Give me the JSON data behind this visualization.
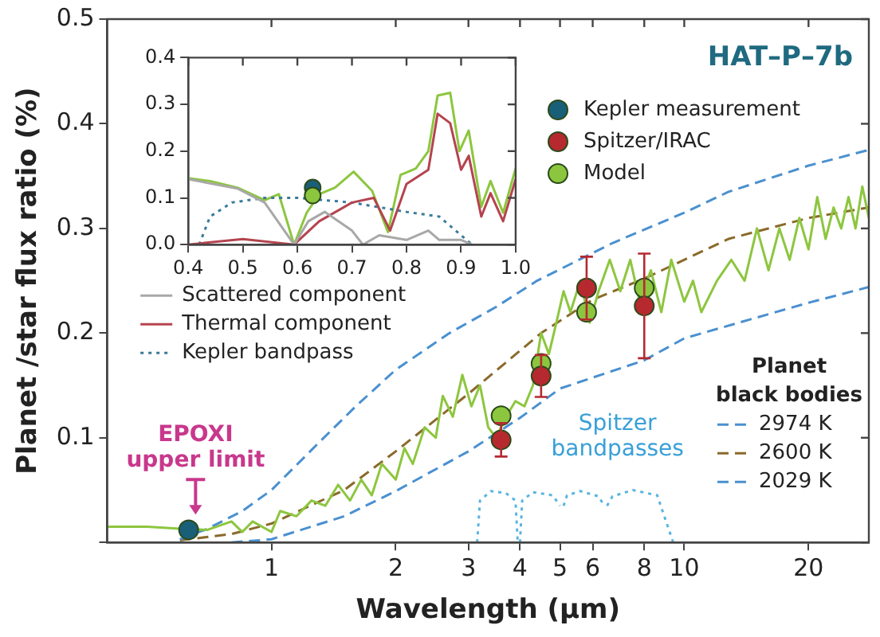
{
  "chart_data": [
    {
      "type": "line",
      "title": "HAT–P–7b",
      "xlabel": "Wavelength (μm)",
      "ylabel": "Planet /star flux ratio (%)",
      "legend_title": "Planet black bodies",
      "legend": "right",
      "log": "x",
      "grid": false,
      "xlim": [
        0.4,
        28
      ],
      "xticks": [
        1,
        2,
        3,
        4,
        5,
        6,
        8,
        10,
        20
      ],
      "ylim": [
        0,
        0.5
      ],
      "yticks": [
        {
          "value": 0,
          "label": null
        },
        0.1,
        0.2,
        0.3,
        0.4,
        0.5
      ],
      "annotations": [
        "EPOXI upper limit",
        "Spitzer bandpasses"
      ],
      "series": [
        {
          "type": "line",
          "color": "#8dc63f",
          "marker": "none",
          "x": [
            0.4,
            0.5,
            0.6,
            0.7,
            0.8,
            0.85,
            0.9,
            1.0,
            1.05,
            1.15,
            1.25,
            1.35,
            1.45,
            1.55,
            1.65,
            1.75,
            1.85,
            2.0,
            2.1,
            2.2,
            2.35,
            2.5,
            2.6,
            2.75,
            2.9,
            3.05,
            3.2,
            3.35,
            3.5,
            3.7,
            3.9,
            4.1,
            4.3,
            4.5,
            4.7,
            4.9,
            5.1,
            5.3,
            5.6,
            5.9,
            6.2,
            6.6,
            7.0,
            7.4,
            7.8,
            8.3,
            8.8,
            9.3,
            10,
            10.5,
            11,
            12,
            13,
            14,
            15,
            16,
            17,
            18,
            19,
            20,
            21,
            22,
            23,
            24,
            25,
            26,
            27,
            28
          ],
          "values": [
            0.015,
            0.015,
            0.013,
            0.012,
            0.02,
            0.01,
            0.02,
            0.01,
            0.03,
            0.025,
            0.04,
            0.035,
            0.055,
            0.04,
            0.06,
            0.045,
            0.075,
            0.06,
            0.09,
            0.075,
            0.11,
            0.1,
            0.14,
            0.12,
            0.16,
            0.13,
            0.15,
            0.11,
            0.1,
            0.12,
            0.135,
            0.13,
            0.15,
            0.2,
            0.18,
            0.21,
            0.24,
            0.22,
            0.25,
            0.21,
            0.24,
            0.27,
            0.24,
            0.27,
            0.23,
            0.26,
            0.22,
            0.27,
            0.23,
            0.25,
            0.22,
            0.25,
            0.27,
            0.25,
            0.3,
            0.26,
            0.3,
            0.27,
            0.31,
            0.28,
            0.33,
            0.29,
            0.32,
            0.3,
            0.33,
            0.3,
            0.34,
            0.31
          ]
        },
        {
          "type": "line",
          "name": "2974 K",
          "color": "#4a90d0",
          "line_style": "dashed",
          "marker": "none",
          "x": [
            0.6,
            0.7,
            0.85,
            1,
            1.3,
            1.6,
            2,
            2.7,
            3.5,
            4.4,
            6.7,
            10,
            12.8,
            20,
            28
          ],
          "values": [
            0.003,
            0.013,
            0.03,
            0.05,
            0.095,
            0.13,
            0.165,
            0.2,
            0.225,
            0.25,
            0.286,
            0.315,
            0.335,
            0.36,
            0.375
          ]
        },
        {
          "type": "line",
          "name": "2600 K",
          "color": "#8a6a2a",
          "line_style": "dashed",
          "marker": "none",
          "x": [
            0.6,
            0.8,
            1,
            1.5,
            2,
            3,
            4.5,
            6,
            8,
            12.8,
            20,
            28
          ],
          "values": [
            0.002,
            0.008,
            0.018,
            0.05,
            0.087,
            0.142,
            0.2,
            0.232,
            0.252,
            0.29,
            0.31,
            0.32
          ]
        },
        {
          "type": "line",
          "name": "2029 K",
          "color": "#4a90d0",
          "line_style": "dashed",
          "marker": "none",
          "x": [
            0.8,
            1,
            1.5,
            2,
            3,
            4,
            5,
            8,
            10,
            20,
            28
          ],
          "values": [
            0,
            0.003,
            0.025,
            0.049,
            0.087,
            0.119,
            0.147,
            0.174,
            0.195,
            0.229,
            0.244
          ]
        },
        {
          "type": "line",
          "color": "#5ab4e0",
          "line_style": "dotted",
          "marker": "none",
          "x": [
            3.15,
            3.2,
            3.4,
            3.7,
            3.9,
            3.95,
            3.97,
            4.0,
            4.05,
            4.3,
            4.8,
            5.0,
            5.05,
            5.1,
            5.2,
            5.6,
            6.2,
            6.4,
            6.45,
            6.5,
            6.7,
            7.5,
            8.6,
            9.4
          ],
          "values": [
            0,
            0.04,
            0.049,
            0.047,
            0.04,
            0,
            null,
            0,
            0.04,
            0.048,
            0.045,
            0.035,
            null,
            0.035,
            0.045,
            0.049,
            0.044,
            0.035,
            null,
            0.035,
            0.044,
            0.05,
            0.045,
            0
          ]
        },
        {
          "type": "scatter",
          "name": "Kepler measurement",
          "color": "#1a5f78",
          "marker": "circle",
          "x": [
            0.63
          ],
          "values": [
            0.012
          ]
        },
        {
          "type": "scatter",
          "name": "Spitzer/IRAC",
          "color": "#b5292f",
          "marker": "circle",
          "x": [
            3.6,
            4.5,
            5.8,
            8.0
          ],
          "values": [
            0.098,
            0.159,
            0.243,
            0.226
          ],
          "errors": [
            0.016,
            0.02,
            0.03,
            0.05
          ]
        },
        {
          "type": "scatter",
          "name": "Model",
          "color": "#8cc63f",
          "marker": "circle",
          "x": [
            3.6,
            4.5,
            5.8,
            8.0
          ],
          "values": [
            0.121,
            0.171,
            0.22,
            0.243
          ]
        }
      ]
    },
    {
      "type": "line",
      "legend": "bottom",
      "grid": false,
      "xlim": [
        0.4,
        1.0
      ],
      "xticks": [
        0.4,
        0.5,
        0.6,
        0.7,
        0.8,
        0.9,
        {
          "value": 1.0,
          "label": "1.0"
        }
      ],
      "ylim": [
        0,
        0.4
      ],
      "yticks": [
        {
          "value": 0,
          "label": "0.0"
        },
        0.1,
        0.2,
        0.3,
        0.4
      ],
      "series": [
        {
          "type": "line",
          "name": "Scattered component",
          "color": "#a8a8a8",
          "marker": "none",
          "x": [
            0.4,
            0.49,
            0.54,
            0.594,
            0.62,
            0.65,
            0.7,
            0.72,
            0.75,
            0.8,
            0.84,
            0.86,
            0.9,
            0.92
          ],
          "values": [
            0.14,
            0.12,
            0.09,
            0,
            0.05,
            0.07,
            0.03,
            0,
            0.02,
            0.01,
            0.03,
            0.01,
            0.01,
            0
          ]
        },
        {
          "type": "line",
          "name": "Thermal component",
          "color": "#b4444f",
          "marker": "none",
          "x": [
            0.4,
            0.5,
            0.594,
            0.64,
            0.7,
            0.74,
            0.77,
            0.8,
            0.84,
            0.857,
            0.88,
            0.9,
            0.914,
            0.937,
            0.954,
            0.977,
            1.0
          ],
          "values": [
            0,
            0.012,
            0,
            0.05,
            0.09,
            0.1,
            0.03,
            0.13,
            0.16,
            0.28,
            0.26,
            0.16,
            0.19,
            0.06,
            0.11,
            0.05,
            0.14
          ]
        },
        {
          "type": "line",
          "name": "Kepler bandpass",
          "color": "#3a7a9a",
          "line_style": "dotted",
          "marker": "none",
          "x": [
            0.42,
            0.44,
            0.48,
            0.54,
            0.6,
            0.7,
            0.8,
            0.86,
            0.9,
            0.92
          ],
          "values": [
            0,
            0.06,
            0.09,
            0.1,
            0.1,
            0.09,
            0.07,
            0.06,
            0.02,
            0
          ]
        },
        {
          "type": "line",
          "color": "#8dc63f",
          "marker": "none",
          "x": [
            0.4,
            0.44,
            0.49,
            0.54,
            0.566,
            0.594,
            0.617,
            0.64,
            0.669,
            0.703,
            0.737,
            0.766,
            0.789,
            0.817,
            0.84,
            0.857,
            0.88,
            0.897,
            0.914,
            0.937,
            0.954,
            0.977,
            1.0
          ],
          "values": [
            0.142,
            0.136,
            0.122,
            0.095,
            0.108,
            0,
            0.068,
            0.108,
            0.122,
            0.156,
            0.115,
            0.027,
            0.149,
            0.163,
            0.2,
            0.319,
            0.325,
            0.2,
            0.244,
            0.081,
            0.136,
            0.068,
            0.163
          ]
        },
        {
          "type": "scatter",
          "color": "#8cc63f",
          "marker": "circle",
          "x": [
            0.628
          ],
          "values": [
            0.105
          ]
        },
        {
          "type": "scatter",
          "color": "#1a5f78",
          "marker": "circle",
          "x": [
            0.628
          ],
          "values": [
            0.122
          ]
        }
      ]
    }
  ]
}
